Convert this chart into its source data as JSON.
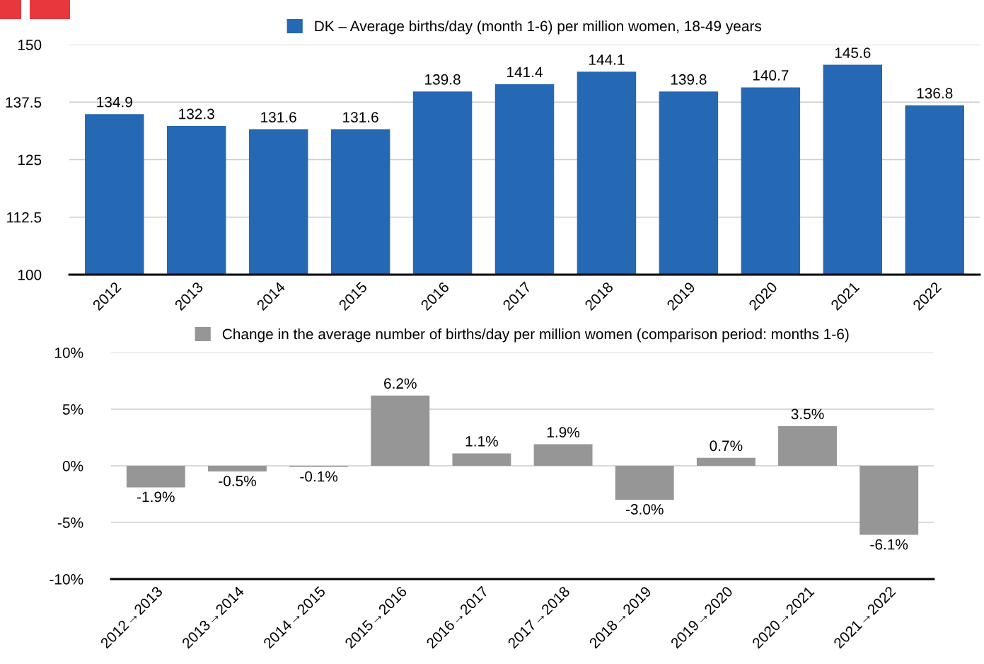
{
  "chart_data": [
    {
      "type": "bar",
      "categories": [
        "2012",
        "2013",
        "2014",
        "2015",
        "2016",
        "2017",
        "2018",
        "2019",
        "2020",
        "2021",
        "2022"
      ],
      "series": [
        {
          "name": "DK – Average births/day (month 1-6) per million women, 18-49 years",
          "color": "#2568b3",
          "values": [
            134.9,
            132.3,
            131.6,
            131.6,
            139.8,
            141.4,
            144.1,
            139.8,
            140.7,
            145.6,
            136.8
          ]
        }
      ],
      "ylim": [
        100,
        150
      ],
      "yticks": [
        100,
        112.5,
        125,
        137.5,
        150
      ],
      "grid": "y",
      "legend": "top",
      "data_labels": true
    },
    {
      "type": "bar",
      "categories": [
        "2012→2013",
        "2013→2014",
        "2014→2015",
        "2015→2016",
        "2016→2017",
        "2017→2018",
        "2018→2019",
        "2019→2020",
        "2020→2021",
        "2021→2022"
      ],
      "series": [
        {
          "name": "Change in the average number of births/day per million women (comparison period: months 1-6)",
          "color": "#969696",
          "values": [
            -1.9,
            -0.5,
            -0.1,
            6.2,
            1.1,
            1.9,
            -3.0,
            0.7,
            3.5,
            -6.1
          ],
          "value_labels": [
            "-1.9%",
            "-0.5%",
            "-0.1%",
            "6.2%",
            "1.1%",
            "1.9%",
            "-3.0%",
            "0.7%",
            "3.5%",
            "-6.1%"
          ]
        }
      ],
      "ylim": [
        -10,
        10
      ],
      "yticks": [
        {
          "value": -10,
          "label": "-10%"
        },
        {
          "value": -5,
          "label": "-5%"
        },
        {
          "value": 0,
          "label": "0%"
        },
        {
          "value": 5,
          "label": "5%"
        },
        {
          "value": 10,
          "label": "10%"
        }
      ],
      "grid": "y",
      "legend": "top"
    }
  ]
}
